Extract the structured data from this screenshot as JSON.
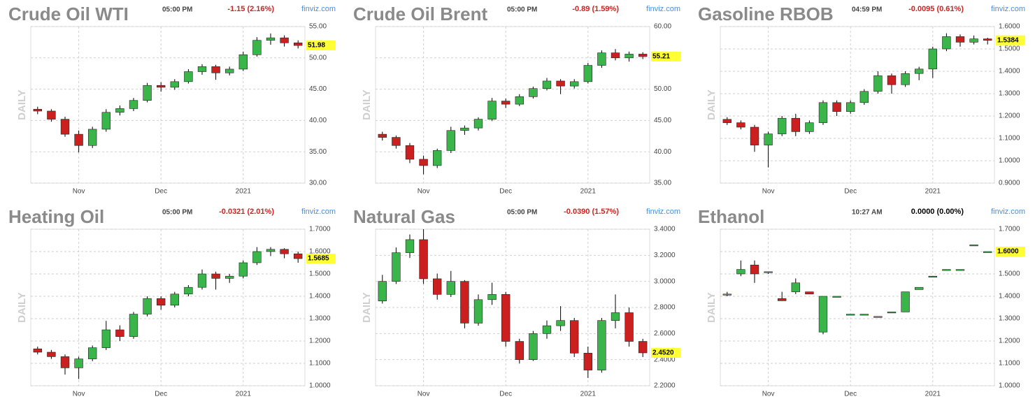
{
  "chart_data": [
    {
      "type": "candlestick",
      "title": "Crude Oil WTI",
      "time": "05:00 PM",
      "change": "-1.15 (2.16%)",
      "change_color": "#d42020",
      "source": "finviz.com",
      "side_label": "DAILY",
      "up_color": "#39b54a",
      "down_color": "#cc1f1f",
      "grid": true,
      "last": 51.98,
      "ylim": [
        30,
        55
      ],
      "yticks": [
        {
          "value": 30,
          "label": "30.00"
        },
        {
          "value": 35,
          "label": "35.00"
        },
        {
          "value": 40,
          "label": "40.00"
        },
        {
          "value": 45,
          "label": "45.00"
        },
        {
          "value": 50,
          "label": "50.00"
        },
        {
          "value": 55,
          "label": "55.00"
        }
      ],
      "categories": [
        null,
        null,
        null,
        "Nov",
        null,
        null,
        null,
        null,
        null,
        "Dec",
        null,
        null,
        null,
        null,
        null,
        "2021",
        null,
        null,
        null,
        null
      ],
      "ohlc": [
        [
          41.8,
          42.2,
          41.0,
          41.5
        ],
        [
          41.5,
          41.8,
          39.8,
          40.2
        ],
        [
          40.2,
          40.6,
          37.4,
          37.8
        ],
        [
          37.8,
          38.4,
          34.9,
          36.0
        ],
        [
          36.0,
          39.0,
          35.6,
          38.6
        ],
        [
          38.6,
          41.8,
          38.2,
          41.3
        ],
        [
          41.3,
          42.4,
          40.8,
          41.9
        ],
        [
          41.9,
          43.6,
          41.5,
          43.2
        ],
        [
          43.2,
          46.0,
          42.9,
          45.6
        ],
        [
          45.6,
          46.1,
          44.6,
          45.3
        ],
        [
          45.3,
          46.6,
          44.9,
          46.2
        ],
        [
          46.2,
          48.2,
          45.9,
          47.8
        ],
        [
          47.8,
          49.0,
          47.3,
          48.6
        ],
        [
          48.6,
          48.9,
          46.5,
          47.6
        ],
        [
          47.6,
          48.6,
          47.2,
          48.2
        ],
        [
          48.2,
          51.0,
          47.9,
          50.5
        ],
        [
          50.5,
          53.3,
          50.2,
          52.8
        ],
        [
          52.8,
          53.9,
          52.1,
          53.2
        ],
        [
          53.2,
          53.6,
          51.8,
          52.4
        ],
        [
          52.4,
          52.8,
          51.5,
          51.98
        ]
      ]
    },
    {
      "type": "candlestick",
      "title": "Crude Oil Brent",
      "time": "05:00 PM",
      "change": "-0.89 (1.59%)",
      "change_color": "#d42020",
      "source": "finviz.com",
      "side_label": "DAILY",
      "up_color": "#39b54a",
      "down_color": "#cc1f1f",
      "grid": true,
      "last": 55.21,
      "ylim": [
        35,
        60
      ],
      "yticks": [
        {
          "value": 35,
          "label": "35.00"
        },
        {
          "value": 40,
          "label": "40.00"
        },
        {
          "value": 45,
          "label": "45.00"
        },
        {
          "value": 50,
          "label": "50.00"
        },
        {
          "value": 55,
          "label": "55.00"
        },
        {
          "value": 60,
          "label": "60.00"
        }
      ],
      "categories": [
        null,
        null,
        null,
        "Nov",
        null,
        null,
        null,
        null,
        null,
        "Dec",
        null,
        null,
        null,
        null,
        null,
        "2021",
        null,
        null,
        null,
        null
      ],
      "ohlc": [
        [
          42.8,
          43.2,
          41.8,
          42.3
        ],
        [
          42.3,
          42.6,
          40.5,
          41.0
        ],
        [
          41.0,
          41.4,
          38.2,
          38.8
        ],
        [
          38.8,
          39.4,
          36.4,
          37.8
        ],
        [
          37.8,
          40.5,
          37.4,
          40.2
        ],
        [
          40.2,
          44.0,
          39.8,
          43.4
        ],
        [
          43.4,
          44.2,
          42.7,
          43.8
        ],
        [
          43.8,
          45.5,
          43.4,
          45.2
        ],
        [
          45.2,
          48.6,
          44.9,
          48.1
        ],
        [
          48.1,
          48.5,
          47.0,
          47.6
        ],
        [
          47.6,
          49.2,
          47.3,
          48.8
        ],
        [
          48.8,
          50.4,
          48.5,
          50.1
        ],
        [
          50.1,
          51.8,
          49.8,
          51.3
        ],
        [
          51.3,
          51.6,
          49.2,
          50.5
        ],
        [
          50.5,
          51.6,
          50.1,
          51.2
        ],
        [
          51.2,
          54.2,
          50.9,
          53.8
        ],
        [
          53.8,
          56.2,
          53.4,
          55.8
        ],
        [
          55.8,
          56.4,
          54.6,
          55.0
        ],
        [
          55.0,
          56.0,
          54.4,
          55.6
        ],
        [
          55.6,
          55.9,
          54.8,
          55.21
        ]
      ]
    },
    {
      "type": "candlestick",
      "title": "Gasoline RBOB",
      "time": "04:59 PM",
      "change": "-0.0095 (0.61%)",
      "change_color": "#d42020",
      "source": "finviz.com",
      "side_label": "DAILY",
      "up_color": "#39b54a",
      "down_color": "#cc1f1f",
      "grid": true,
      "last": 1.5384,
      "ylim": [
        0.9,
        1.6
      ],
      "yticks": [
        {
          "value": 0.9,
          "label": "0.9000"
        },
        {
          "value": 1.0,
          "label": "1.0000"
        },
        {
          "value": 1.1,
          "label": "1.1000"
        },
        {
          "value": 1.2,
          "label": "1.2000"
        },
        {
          "value": 1.3,
          "label": "1.3000"
        },
        {
          "value": 1.4,
          "label": "1.4000"
        },
        {
          "value": 1.5,
          "label": "1.5000"
        },
        {
          "value": 1.6,
          "label": "1.6000"
        }
      ],
      "categories": [
        null,
        null,
        null,
        "Nov",
        null,
        null,
        null,
        null,
        null,
        "Dec",
        null,
        null,
        null,
        null,
        null,
        "2021",
        null,
        null,
        null,
        null
      ],
      "ohlc": [
        [
          1.185,
          1.195,
          1.16,
          1.17
        ],
        [
          1.17,
          1.18,
          1.14,
          1.15
        ],
        [
          1.15,
          1.16,
          1.04,
          1.07
        ],
        [
          1.07,
          1.13,
          0.97,
          1.12
        ],
        [
          1.12,
          1.2,
          1.11,
          1.19
        ],
        [
          1.19,
          1.21,
          1.11,
          1.13
        ],
        [
          1.13,
          1.18,
          1.12,
          1.17
        ],
        [
          1.17,
          1.27,
          1.16,
          1.26
        ],
        [
          1.26,
          1.27,
          1.2,
          1.22
        ],
        [
          1.22,
          1.27,
          1.21,
          1.26
        ],
        [
          1.26,
          1.32,
          1.25,
          1.31
        ],
        [
          1.31,
          1.4,
          1.3,
          1.38
        ],
        [
          1.38,
          1.39,
          1.3,
          1.34
        ],
        [
          1.34,
          1.4,
          1.33,
          1.39
        ],
        [
          1.39,
          1.42,
          1.36,
          1.41
        ],
        [
          1.41,
          1.51,
          1.37,
          1.5
        ],
        [
          1.5,
          1.57,
          1.49,
          1.555
        ],
        [
          1.555,
          1.565,
          1.51,
          1.53
        ],
        [
          1.53,
          1.56,
          1.52,
          1.545
        ],
        [
          1.545,
          1.55,
          1.52,
          1.5384
        ]
      ]
    },
    {
      "type": "candlestick",
      "title": "Heating Oil",
      "time": "05:00 PM",
      "change": "-0.0321 (2.01%)",
      "change_color": "#d42020",
      "source": "finviz.com",
      "side_label": "DAILY",
      "up_color": "#39b54a",
      "down_color": "#cc1f1f",
      "grid": true,
      "last": 1.5685,
      "ylim": [
        1.0,
        1.7
      ],
      "yticks": [
        {
          "value": 1.0,
          "label": "1.0000"
        },
        {
          "value": 1.1,
          "label": "1.1000"
        },
        {
          "value": 1.2,
          "label": "1.2000"
        },
        {
          "value": 1.3,
          "label": "1.3000"
        },
        {
          "value": 1.4,
          "label": "1.4000"
        },
        {
          "value": 1.5,
          "label": "1.5000"
        },
        {
          "value": 1.6,
          "label": "1.6000"
        },
        {
          "value": 1.7,
          "label": "1.7000"
        }
      ],
      "categories": [
        null,
        null,
        null,
        "Nov",
        null,
        null,
        null,
        null,
        null,
        "Dec",
        null,
        null,
        null,
        null,
        null,
        "2021",
        null,
        null,
        null,
        null
      ],
      "ohlc": [
        [
          1.165,
          1.175,
          1.14,
          1.15
        ],
        [
          1.15,
          1.16,
          1.12,
          1.13
        ],
        [
          1.13,
          1.14,
          1.05,
          1.08
        ],
        [
          1.08,
          1.13,
          1.03,
          1.12
        ],
        [
          1.12,
          1.18,
          1.11,
          1.17
        ],
        [
          1.17,
          1.29,
          1.16,
          1.25
        ],
        [
          1.25,
          1.27,
          1.2,
          1.22
        ],
        [
          1.22,
          1.33,
          1.21,
          1.32
        ],
        [
          1.32,
          1.4,
          1.31,
          1.39
        ],
        [
          1.39,
          1.4,
          1.34,
          1.36
        ],
        [
          1.36,
          1.42,
          1.35,
          1.41
        ],
        [
          1.41,
          1.45,
          1.4,
          1.44
        ],
        [
          1.44,
          1.52,
          1.43,
          1.5
        ],
        [
          1.5,
          1.51,
          1.43,
          1.48
        ],
        [
          1.48,
          1.5,
          1.46,
          1.49
        ],
        [
          1.49,
          1.56,
          1.48,
          1.55
        ],
        [
          1.55,
          1.62,
          1.54,
          1.6
        ],
        [
          1.6,
          1.62,
          1.58,
          1.61
        ],
        [
          1.61,
          1.615,
          1.57,
          1.59
        ],
        [
          1.59,
          1.6,
          1.55,
          1.5685
        ]
      ]
    },
    {
      "type": "candlestick",
      "title": "Natural Gas",
      "time": "05:00 PM",
      "change": "-0.0390 (1.57%)",
      "change_color": "#d42020",
      "source": "finviz.com",
      "side_label": "DAILY",
      "up_color": "#39b54a",
      "down_color": "#cc1f1f",
      "grid": true,
      "last": {
        "value": 2.452,
        "label": "2.4520"
      },
      "ylim": [
        2.2,
        3.4
      ],
      "yticks": [
        {
          "value": 2.2,
          "label": "2.2000"
        },
        {
          "value": 2.4,
          "label": "2.4000"
        },
        {
          "value": 2.6,
          "label": "2.6000"
        },
        {
          "value": 2.8,
          "label": "2.8000"
        },
        {
          "value": 3.0,
          "label": "3.0000"
        },
        {
          "value": 3.2,
          "label": "3.2000"
        },
        {
          "value": 3.4,
          "label": "3.4000"
        }
      ],
      "categories": [
        null,
        null,
        null,
        "Nov",
        null,
        null,
        null,
        null,
        null,
        "Dec",
        null,
        null,
        null,
        null,
        null,
        "2021",
        null,
        null,
        null,
        null
      ],
      "ohlc": [
        [
          2.85,
          3.05,
          2.83,
          3.0
        ],
        [
          3.0,
          3.26,
          2.98,
          3.22
        ],
        [
          3.22,
          3.36,
          3.18,
          3.32
        ],
        [
          3.32,
          3.4,
          2.98,
          3.02
        ],
        [
          3.02,
          3.06,
          2.86,
          2.9
        ],
        [
          2.9,
          3.08,
          2.88,
          3.0
        ],
        [
          3.0,
          3.01,
          2.64,
          2.68
        ],
        [
          2.68,
          2.9,
          2.66,
          2.86
        ],
        [
          2.86,
          2.99,
          2.82,
          2.9
        ],
        [
          2.9,
          2.92,
          2.5,
          2.54
        ],
        [
          2.54,
          2.56,
          2.37,
          2.4
        ],
        [
          2.4,
          2.62,
          2.39,
          2.6
        ],
        [
          2.6,
          2.7,
          2.56,
          2.66
        ],
        [
          2.66,
          2.81,
          2.62,
          2.7
        ],
        [
          2.7,
          2.72,
          2.42,
          2.45
        ],
        [
          2.45,
          2.5,
          2.26,
          2.32
        ],
        [
          2.32,
          2.72,
          2.3,
          2.7
        ],
        [
          2.7,
          2.9,
          2.64,
          2.76
        ],
        [
          2.76,
          2.8,
          2.5,
          2.54
        ],
        [
          2.54,
          2.56,
          2.42,
          2.452
        ]
      ]
    },
    {
      "type": "candlestick",
      "title": "Ethanol",
      "time": "10:27 AM",
      "change": "0.0000 (0.00%)",
      "change_color": "#000000",
      "source": "finviz.com",
      "side_label": "DAILY",
      "up_color": "#39b54a",
      "down_color": "#cc1f1f",
      "grid": true,
      "last": {
        "value": 1.6,
        "label": "1.6000"
      },
      "ylim": [
        1.0,
        1.7
      ],
      "yticks": [
        {
          "value": 1.0,
          "label": "1.0000"
        },
        {
          "value": 1.1,
          "label": "1.1000"
        },
        {
          "value": 1.2,
          "label": "1.2000"
        },
        {
          "value": 1.3,
          "label": "1.3000"
        },
        {
          "value": 1.4,
          "label": "1.4000"
        },
        {
          "value": 1.5,
          "label": "1.5000"
        },
        {
          "value": 1.6,
          "label": "1.6000"
        },
        {
          "value": 1.7,
          "label": "1.7000"
        }
      ],
      "categories": [
        null,
        null,
        null,
        "Nov",
        null,
        null,
        null,
        null,
        null,
        "Dec",
        null,
        null,
        null,
        null,
        null,
        "2021",
        null,
        null,
        null,
        null
      ],
      "ohlc": [
        [
          1.41,
          1.42,
          1.4,
          1.41
        ],
        [
          1.5,
          1.56,
          1.49,
          1.52
        ],
        [
          1.54,
          1.56,
          1.46,
          1.5
        ],
        [
          1.51,
          1.51,
          1.5,
          1.51
        ],
        [
          1.39,
          1.42,
          1.38,
          1.38
        ],
        [
          1.42,
          1.48,
          1.41,
          1.46
        ],
        [
          1.42,
          1.42,
          1.41,
          1.41
        ],
        [
          1.24,
          1.4,
          1.23,
          1.4
        ],
        [
          1.4,
          1.4,
          1.4,
          1.4
        ],
        [
          1.32,
          1.32,
          1.32,
          1.32
        ],
        [
          1.32,
          1.32,
          1.32,
          1.32
        ],
        [
          1.31,
          1.31,
          1.31,
          1.31
        ],
        [
          1.33,
          1.33,
          1.33,
          1.33
        ],
        [
          1.33,
          1.42,
          1.33,
          1.42
        ],
        [
          1.43,
          1.44,
          1.43,
          1.44
        ],
        [
          1.49,
          1.49,
          1.49,
          1.49
        ],
        [
          1.52,
          1.52,
          1.52,
          1.52
        ],
        [
          1.52,
          1.52,
          1.52,
          1.52
        ],
        [
          1.63,
          1.63,
          1.63,
          1.63
        ],
        [
          1.6,
          1.6,
          1.6,
          1.6
        ]
      ]
    }
  ]
}
